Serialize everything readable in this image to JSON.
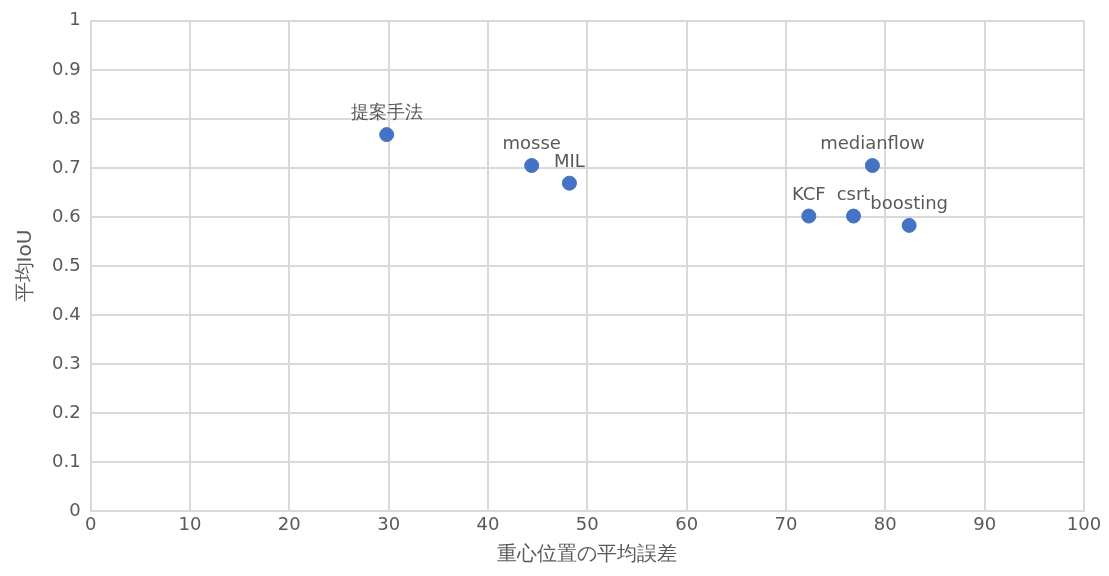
{
  "chart_data": {
    "type": "scatter",
    "xlabel": "重心位置の平均誤差",
    "ylabel": "平均IoU",
    "x": [
      29.8,
      44.4,
      48.2,
      72.3,
      76.8,
      78.7,
      82.4
    ],
    "values": [
      0.768,
      0.705,
      0.669,
      0.602,
      0.602,
      0.705,
      0.583
    ],
    "color": "#4472c4",
    "xlim": [
      0,
      100
    ],
    "xticks": [
      0,
      10,
      20,
      30,
      40,
      50,
      60,
      70,
      80,
      90,
      100
    ],
    "ylim": [
      0,
      1
    ],
    "yticks": [
      0,
      0.1,
      0.2,
      0.3,
      0.4,
      0.5,
      0.6,
      0.7,
      0.8,
      0.9,
      1
    ],
    "grid": true,
    "legend": false,
    "marker": "circle",
    "annotations": [
      {
        "text": "提案手法",
        "x": 29.8,
        "y": 0.768
      },
      {
        "text": "mosse",
        "x": 44.4,
        "y": 0.705
      },
      {
        "text": "MIL",
        "x": 48.2,
        "y": 0.669
      },
      {
        "text": "KCF",
        "x": 72.3,
        "y": 0.602
      },
      {
        "text": "csrt",
        "x": 76.8,
        "y": 0.602
      },
      {
        "text": "medianflow",
        "x": 78.7,
        "y": 0.705
      },
      {
        "text": "boosting",
        "x": 82.4,
        "y": 0.583
      }
    ]
  }
}
